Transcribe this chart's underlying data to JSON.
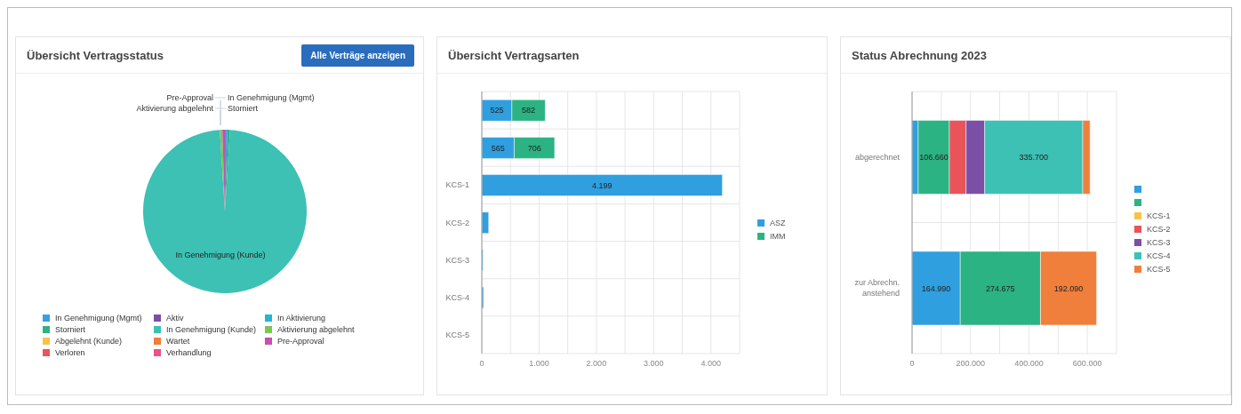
{
  "chart_data": [
    {
      "type": "pie",
      "title": "Übersicht Vertragsstatus",
      "annotations": [
        "Alle Verträge anzeigen"
      ],
      "categories": [
        "In Genehmigung (Mgmt)",
        "Aktiv",
        "In Aktivierung",
        "Storniert",
        "In Genehmigung (Kunde)",
        "Aktivierung abgelehnt",
        "Abgelehnt (Kunde)",
        "Wartet",
        "Pre-Approval",
        "Verloren",
        "Verhandlung"
      ],
      "values": [
        0.5,
        0,
        0,
        0.5,
        98,
        0.5,
        0,
        0,
        0.5,
        0,
        0
      ],
      "colors": [
        "#3a9ee4",
        "#7b4fa6",
        "#1fb8d0",
        "#2bb383",
        "#3cc1b4",
        "#7cc456",
        "#f7c44a",
        "#f07f3c",
        "#c64fb0",
        "#e8545a",
        "#ee4f8c"
      ],
      "legend": "bottom"
    },
    {
      "type": "bar",
      "title": "Übersicht Vertragsarten",
      "orientation": "horizontal",
      "stacked": true,
      "categories": [
        null,
        null,
        "KCS-1",
        "KCS-2",
        "KCS-3",
        "KCS-4",
        "KCS-5"
      ],
      "series": [
        {
          "name": "ASZ",
          "color": "#2f9fe0",
          "values": [
            525,
            565,
            4199,
            120,
            20,
            30,
            0
          ],
          "value_labels": [
            "525",
            "565",
            "4.199",
            null,
            null,
            null,
            null
          ]
        },
        {
          "name": "IMM",
          "color": "#2bb383",
          "values": [
            582,
            706,
            null,
            null,
            null,
            null,
            null
          ],
          "value_labels": [
            "582",
            "706",
            null,
            null,
            null,
            null,
            null
          ]
        }
      ],
      "xlim": [
        0,
        4500
      ],
      "xticks": [
        0,
        {
          "value": 500,
          "label": null
        },
        {
          "value": 1000,
          "label": "1.000"
        },
        {
          "value": 1500,
          "label": null
        },
        {
          "value": 2000,
          "label": "2.000"
        },
        {
          "value": 2500,
          "label": null
        },
        {
          "value": 3000,
          "label": "3.000"
        },
        {
          "value": 3500,
          "label": null
        },
        {
          "value": 4000,
          "label": "4.000"
        },
        {
          "value": 4500,
          "label": null
        }
      ],
      "grid": true,
      "legend": "right"
    },
    {
      "type": "bar",
      "title": "Status Abrechnung 2023",
      "orientation": "horizontal",
      "stacked": true,
      "categories": [
        "abgerechnet",
        "zur Abrechn. anstehend"
      ],
      "series": [
        {
          "color": "#2f9fe0",
          "values": [
            21000,
            164990
          ],
          "value_labels": [
            null,
            "164.990"
          ]
        },
        {
          "color": "#2bb383",
          "values": [
            106660,
            274675
          ],
          "value_labels": [
            "106.660",
            "274.675"
          ]
        },
        {
          "name": "KCS-1",
          "color": "#f7c44a",
          "values": [
            null,
            null
          ]
        },
        {
          "name": "KCS-2",
          "color": "#e8545a",
          "values": [
            57000,
            null
          ]
        },
        {
          "name": "KCS-3",
          "color": "#7b4fa6",
          "values": [
            64000,
            null
          ]
        },
        {
          "name": "KCS-4",
          "color": "#3cc1b4",
          "values": [
            335700,
            null
          ],
          "value_labels": [
            "335.700",
            null
          ]
        },
        {
          "name": "KCS-5",
          "color": "#f07f3c",
          "values": [
            25000,
            192090
          ],
          "value_labels": [
            null,
            "192.090"
          ]
        }
      ],
      "xlim": [
        0,
        700000
      ],
      "xticks": [
        0,
        {
          "value": 100000,
          "label": null
        },
        {
          "value": 200000,
          "label": "200.000"
        },
        {
          "value": 300000,
          "label": null
        },
        {
          "value": 400000,
          "label": "400.000"
        },
        {
          "value": 500000,
          "label": null
        },
        {
          "value": 600000,
          "label": "600.000"
        },
        {
          "value": 700000,
          "label": null
        }
      ],
      "grid": true,
      "legend": "right"
    }
  ]
}
